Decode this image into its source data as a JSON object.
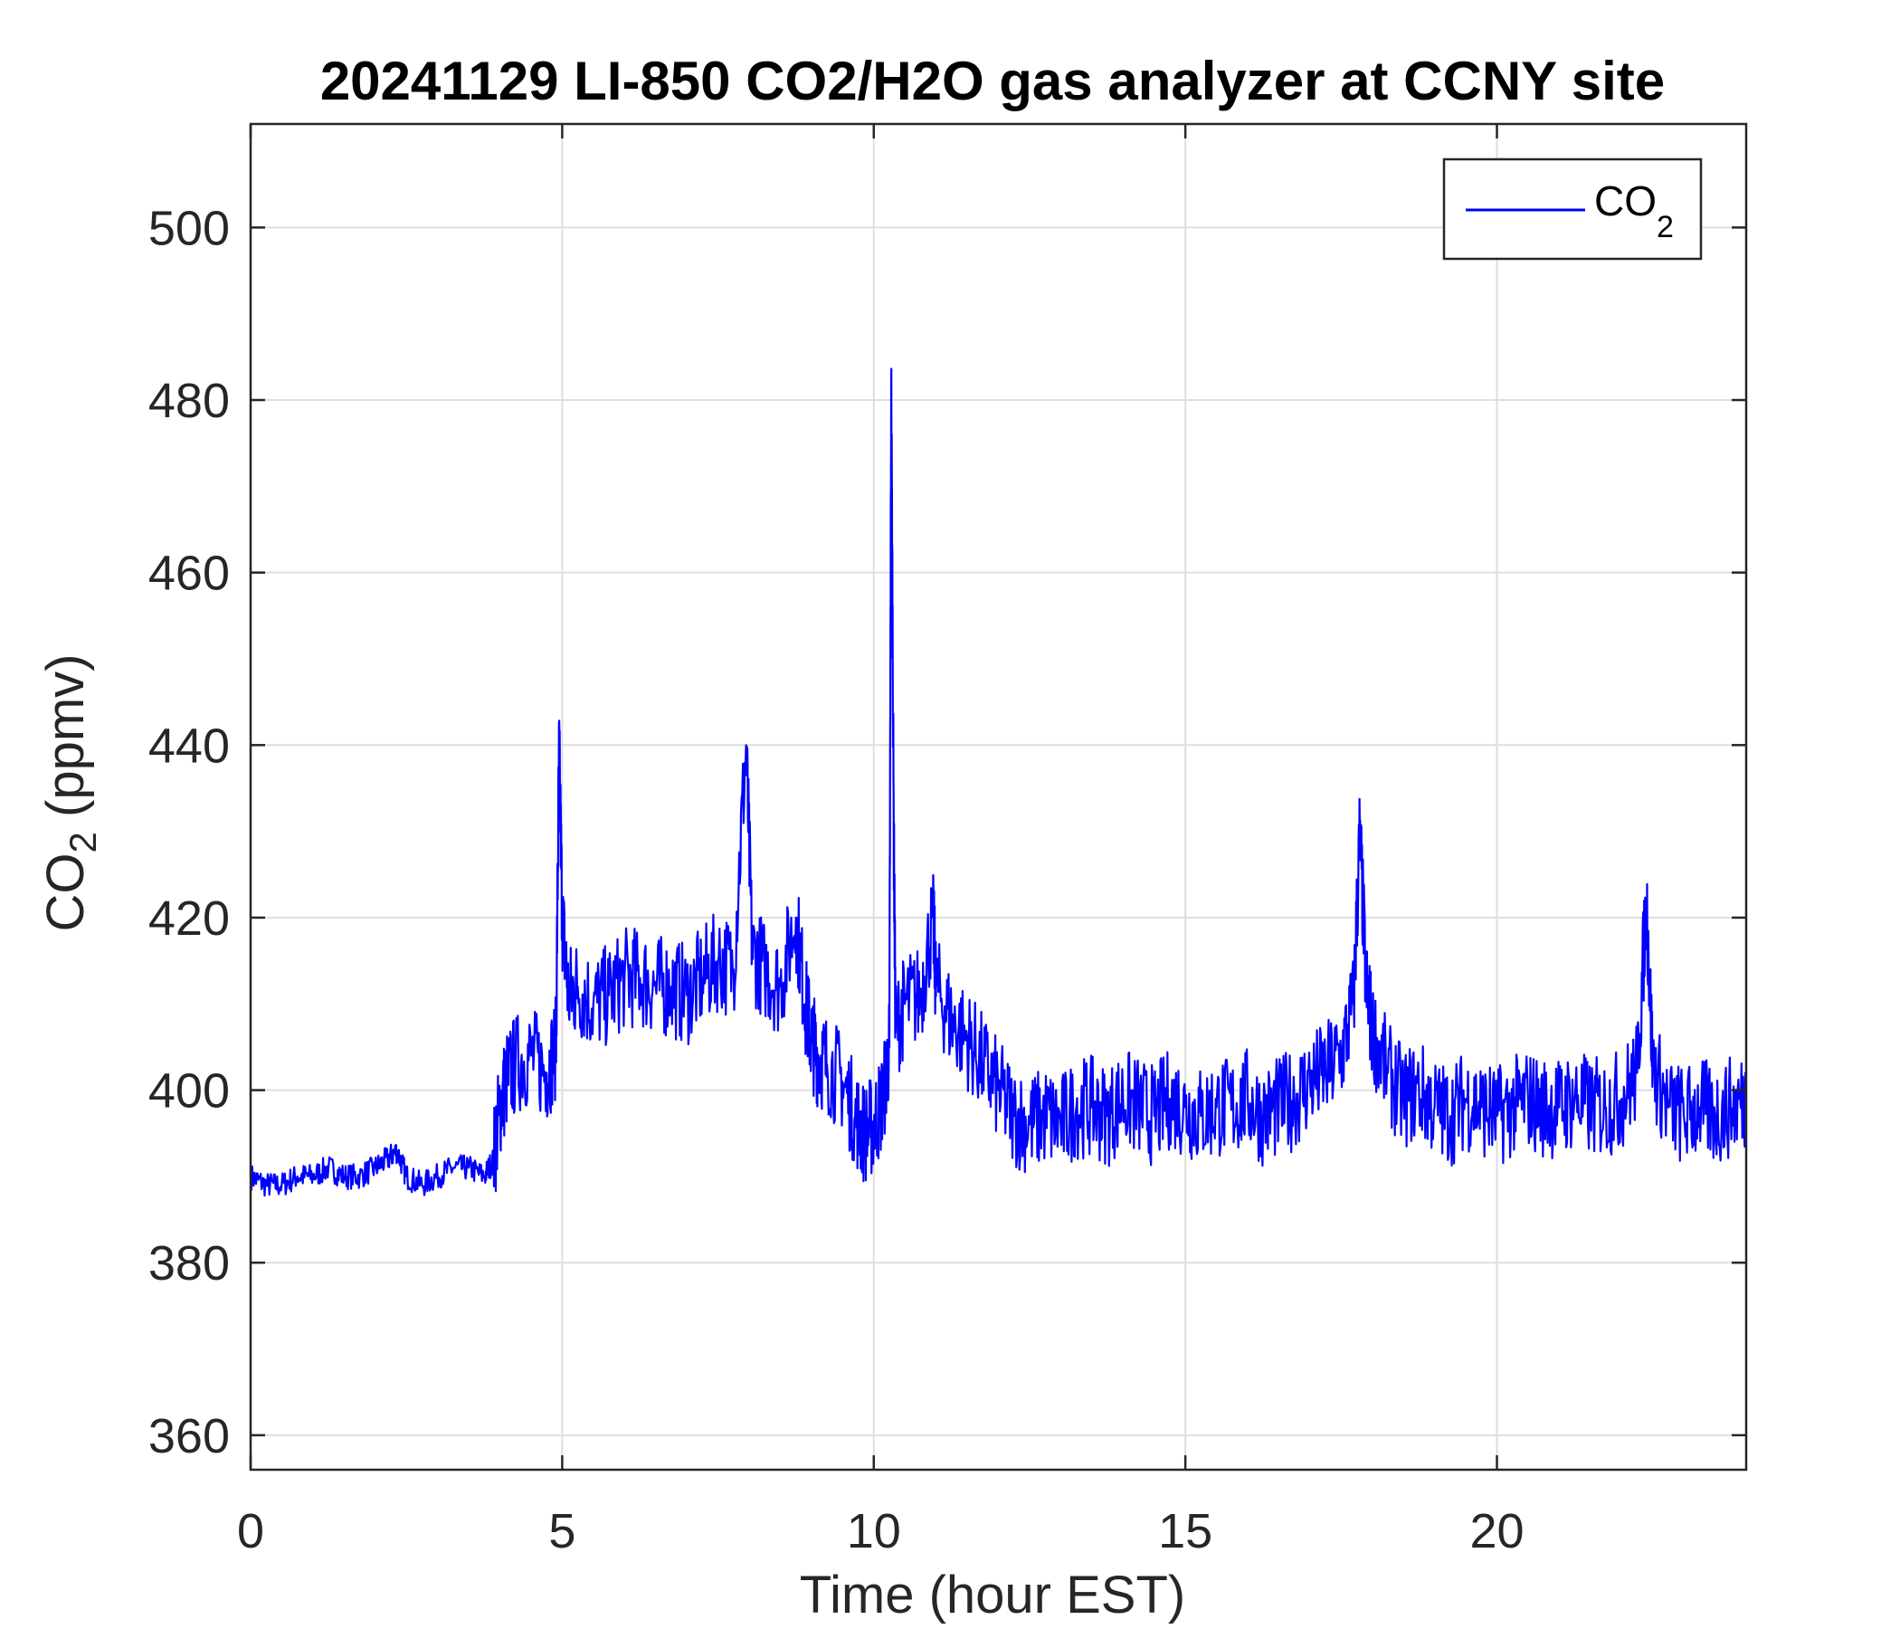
{
  "chart_data": {
    "type": "line",
    "title": "20241129 LI-850 CO2/H2O gas analyzer at CCNY site",
    "xlabel": "Time (hour EST)",
    "ylabel": {
      "main": "CO",
      "sub": "2",
      "suffix": " (ppmv)"
    },
    "xlim": [
      0,
      24
    ],
    "ylim": [
      356,
      512
    ],
    "xticks": [
      0,
      5,
      10,
      15,
      20
    ],
    "xtick_labels": [
      "0",
      "5",
      "10",
      "15",
      "20"
    ],
    "yticks": [
      360,
      380,
      400,
      420,
      440,
      460,
      480,
      500
    ],
    "ytick_labels": [
      "360",
      "380",
      "400",
      "420",
      "440",
      "460",
      "480",
      "500"
    ],
    "grid": true,
    "legend_position": "top-right",
    "series": [
      {
        "name": {
          "main": "CO",
          "sub": "2"
        },
        "color": "#0000ff",
        "x": [
          0.0,
          0.25,
          0.5,
          0.75,
          1.0,
          1.25,
          1.5,
          1.75,
          2.0,
          2.2,
          2.35,
          2.5,
          2.75,
          3.0,
          3.25,
          3.5,
          3.75,
          3.9,
          4.0,
          4.1,
          4.25,
          4.5,
          4.75,
          4.9,
          4.95,
          5.0,
          5.1,
          5.25,
          5.5,
          5.75,
          6.0,
          6.25,
          6.5,
          6.75,
          7.0,
          7.25,
          7.5,
          7.75,
          7.95,
          8.05,
          8.25,
          8.5,
          8.75,
          8.9,
          9.0,
          9.1,
          9.25,
          9.5,
          9.7,
          9.85,
          10.0,
          10.15,
          10.25,
          10.28,
          10.32,
          10.35,
          10.5,
          10.75,
          10.95,
          11.0,
          11.25,
          11.5,
          11.75,
          12.0,
          12.25,
          12.5,
          12.75,
          13.0,
          13.25,
          13.5,
          13.75,
          14.0,
          14.25,
          14.5,
          14.75,
          15.0,
          15.25,
          15.5,
          15.75,
          16.0,
          16.25,
          16.5,
          16.75,
          17.0,
          17.25,
          17.5,
          17.7,
          17.8,
          17.9,
          18.0,
          18.25,
          18.5,
          18.75,
          19.0,
          19.25,
          19.5,
          19.75,
          20.0,
          20.25,
          20.5,
          20.75,
          21.0,
          21.25,
          21.5,
          21.75,
          22.0,
          22.25,
          22.4,
          22.5,
          22.75,
          23.0,
          23.25,
          23.5,
          23.75,
          24.0
        ],
        "values": [
          390,
          389,
          389,
          390,
          390,
          391,
          390,
          390,
          391,
          392,
          393,
          390,
          389,
          390,
          391,
          391,
          390,
          392,
          398,
          401,
          403,
          404,
          402,
          405,
          440,
          420,
          411,
          412,
          410,
          411,
          413,
          413,
          412,
          412,
          411,
          413,
          415,
          414,
          440,
          416,
          414,
          412,
          420,
          410,
          406,
          404,
          403,
          401,
          397,
          395,
          396,
          399,
          405,
          482,
          430,
          407,
          410,
          411,
          420,
          412,
          408,
          406,
          403,
          400,
          397,
          396,
          397,
          396,
          398,
          398,
          397,
          399,
          398,
          397,
          399,
          398,
          397,
          398,
          398,
          399,
          397,
          398,
          399,
          401,
          402,
          404,
          410,
          430,
          412,
          407,
          402,
          399,
          400,
          398,
          397,
          399,
          398,
          397,
          398,
          399,
          398,
          398,
          399,
          398,
          398,
          399,
          402,
          422,
          403,
          398,
          397,
          398,
          397,
          398,
          399
        ]
      }
    ]
  }
}
